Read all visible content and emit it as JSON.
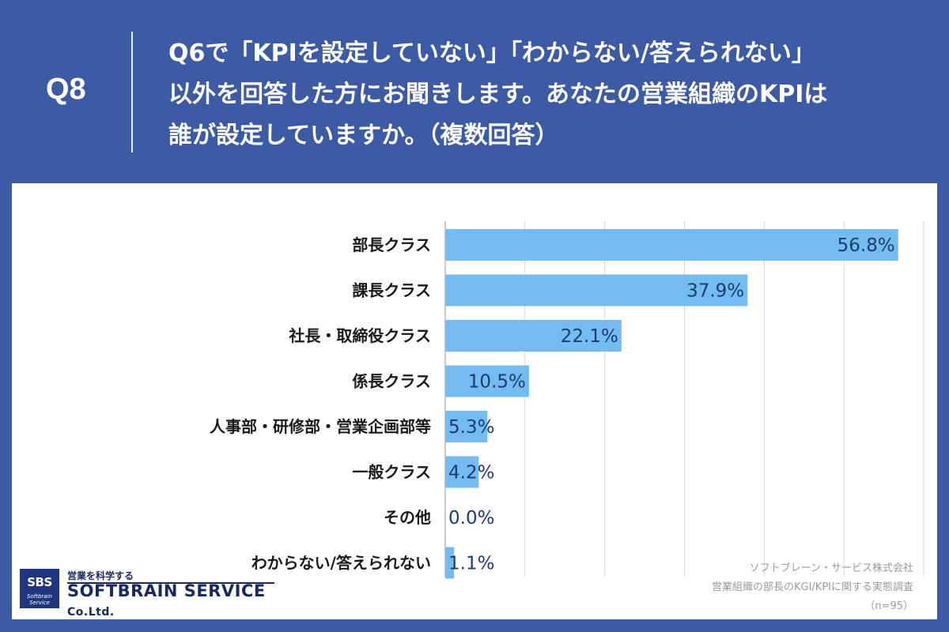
{
  "header": {
    "question_number": "Q8",
    "question_lines": [
      "Q6で「KPIを設定していない」「わからない/答えられない」",
      "以外を回答した方にお聞きします。あなたの営業組織のKPIは",
      "誰が設定していますか。（複数回答）"
    ]
  },
  "chart_data": {
    "type": "bar",
    "orientation": "horizontal",
    "categories": [
      "部長クラス",
      "課長クラス",
      "社長・取締役クラス",
      "係長クラス",
      "人事部・研修部・営業企画部等",
      "一般クラス",
      "その他",
      "わからない/答えられない"
    ],
    "values": [
      56.8,
      37.9,
      22.1,
      10.5,
      5.3,
      4.2,
      0.0,
      1.1
    ],
    "value_labels": [
      "56.8%",
      "37.9%",
      "22.1%",
      "10.5%",
      "5.3%",
      "4.2%",
      "0.0%",
      "1.1%"
    ],
    "xlim": [
      0,
      60
    ],
    "grid": true,
    "bar_color": "#72bcf2",
    "label_color": "#1d3c6e"
  },
  "credit": {
    "company": "ソフトブレーン・サービス株式会社",
    "survey": "営業組織の部長のKGI/KPIに関する実態調査",
    "sample": "（n=95）"
  },
  "logo": {
    "abbr": "SBS",
    "small": "Softbrain Service",
    "tagline": "営業を科学する",
    "name": "SOFTBRAIN  SERVICE",
    "suffix": "Co.Ltd."
  },
  "colors": {
    "background": "#3d5aa5",
    "panel": "#ffffff",
    "grid": "#d6d6d6",
    "axis": "#9a9a9a"
  }
}
